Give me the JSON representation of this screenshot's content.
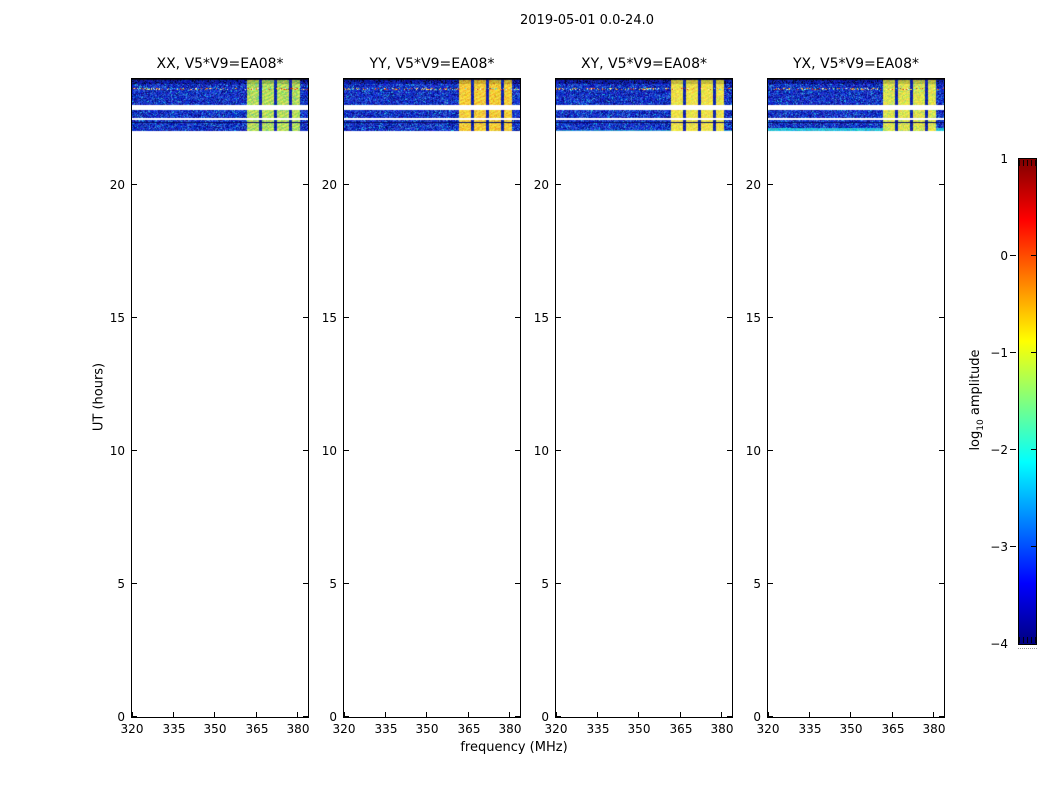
{
  "chart_data": {
    "type": "heatmap",
    "suptitle": "2019-05-01 0.0-24.0",
    "xlabel": "frequency (MHz)",
    "ylabel": "UT (hours)",
    "xlim": [
      320,
      383.6
    ],
    "ylim": [
      0,
      24
    ],
    "xticks": [
      320,
      335,
      350,
      365,
      380
    ],
    "yticks": [
      0,
      5,
      10,
      15,
      20
    ],
    "panels": [
      {
        "id": "xx",
        "title": "XX, V5*V9=EA08*",
        "block_colors": [
          "#9fd855",
          "#dde85f",
          "#5ec98a"
        ],
        "bottom_style": "normal"
      },
      {
        "id": "yy",
        "title": "YY, V5*V9=EA08*",
        "block_colors": [
          "#f2c431",
          "#f7e046",
          "#e89b24"
        ],
        "bottom_style": "normal"
      },
      {
        "id": "xy",
        "title": "XY, V5*V9=EA08*",
        "block_colors": [
          "#eedb3e",
          "#f4e74e",
          "#c8e05a"
        ],
        "bottom_style": "cyan_edge"
      },
      {
        "id": "yx",
        "title": "YX, V5*V9=EA08*",
        "block_colors": [
          "#d9e04a",
          "#efe74e",
          "#8fd879"
        ],
        "bottom_style": "cyan_stripes"
      }
    ],
    "time_bands": [
      {
        "hours": [
          23.78,
          23.97
        ],
        "kind": "dark"
      },
      {
        "hours": [
          23.03,
          23.78
        ],
        "kind": "main",
        "sparkle_hour": 23.62
      },
      {
        "hours": [
          22.54,
          22.8
        ],
        "kind": "noise"
      },
      {
        "hours": [
          22.35,
          22.43
        ],
        "kind": "thin"
      },
      {
        "hours": [
          22.31,
          22.35
        ],
        "kind": "line"
      },
      {
        "hours": [
          22.05,
          22.31
        ],
        "kind": "bottom"
      }
    ],
    "rfi_blocks": {
      "freq_ranges": [
        [
          361.7,
          366.0
        ],
        [
          367.1,
          371.4
        ],
        [
          372.5,
          376.8
        ],
        [
          377.9,
          380.7
        ]
      ]
    },
    "noise_colors": {
      "base": "#1433c8",
      "light": "#2f62dc",
      "cyan": "#26b2e4",
      "dark": "#060e8c"
    },
    "sparkle_colors": [
      "#ffe23c",
      "#fff6c8",
      "#45e0ff",
      "#ff8c1a",
      "#d83010"
    ],
    "colorbar": {
      "label_prefix": "log",
      "label_sub": "10",
      "label_suffix": " amplitude",
      "ticks": [
        1,
        0,
        -1,
        -2,
        -3,
        -4
      ],
      "vmin": -4,
      "vmax": 1,
      "cmap": "jet",
      "cmap_stops": [
        [
          "#7f0000",
          0
        ],
        [
          "#ff0000",
          0.125
        ],
        [
          "#ffff00",
          0.375
        ],
        [
          "#00ffff",
          0.625
        ],
        [
          "#0000ff",
          0.875
        ],
        [
          "#00007f",
          1
        ]
      ]
    }
  }
}
